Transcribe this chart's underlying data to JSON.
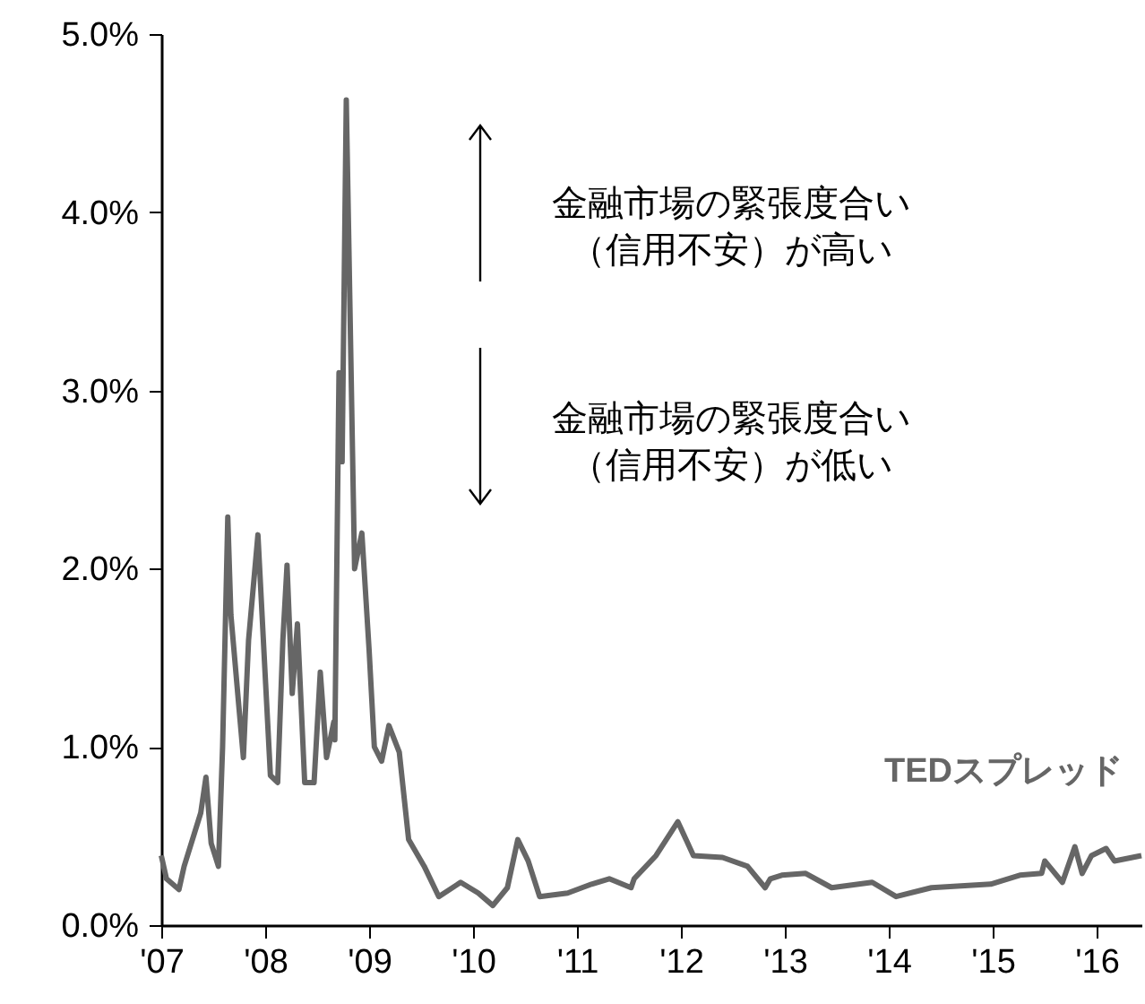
{
  "chart_data": {
    "type": "line",
    "x": [
      2007.0,
      2007.05,
      2007.17,
      2007.22,
      2007.38,
      2007.43,
      2007.48,
      2007.55,
      2007.59,
      2007.64,
      2007.67,
      2007.74,
      2007.79,
      2007.84,
      2007.93,
      2008.0,
      2008.05,
      2008.12,
      2008.17,
      2008.21,
      2008.26,
      2008.31,
      2008.38,
      2008.47,
      2008.53,
      2008.59,
      2008.66,
      2008.67,
      2008.71,
      2008.74,
      2008.78,
      2008.86,
      2008.93,
      2009.0,
      2009.05,
      2009.12,
      2009.19,
      2009.29,
      2009.38,
      2009.53,
      2009.67,
      2009.88,
      2010.05,
      2010.19,
      2010.33,
      2010.43,
      2010.53,
      2010.64,
      2010.91,
      2011.14,
      2011.31,
      2011.52,
      2011.55,
      2011.76,
      2011.97,
      2012.12,
      2012.4,
      2012.64,
      2012.81,
      2012.86,
      2012.97,
      2013.2,
      2013.45,
      2013.84,
      2014.07,
      2014.41,
      2014.98,
      2015.26,
      2015.47,
      2015.5,
      2015.67,
      2015.79,
      2015.86,
      2015.95,
      2016.09,
      2016.17,
      2016.43
    ],
    "series": [
      {
        "name": "TEDスプレッド",
        "color": "#666666",
        "values": [
          0.39,
          0.26,
          0.2,
          0.33,
          0.63,
          0.83,
          0.46,
          0.33,
          1.0,
          2.29,
          1.74,
          1.27,
          0.94,
          1.6,
          2.19,
          1.4,
          0.84,
          0.8,
          1.6,
          2.02,
          1.3,
          1.69,
          0.8,
          0.8,
          1.42,
          0.94,
          1.14,
          1.04,
          3.1,
          2.6,
          4.63,
          2.0,
          2.2,
          1.54,
          1.0,
          0.92,
          1.12,
          0.97,
          0.48,
          0.33,
          0.16,
          0.24,
          0.18,
          0.11,
          0.21,
          0.48,
          0.36,
          0.16,
          0.18,
          0.23,
          0.26,
          0.21,
          0.26,
          0.39,
          0.58,
          0.39,
          0.38,
          0.33,
          0.21,
          0.26,
          0.28,
          0.29,
          0.21,
          0.24,
          0.16,
          0.21,
          0.23,
          0.28,
          0.29,
          0.36,
          0.24,
          0.44,
          0.29,
          0.39,
          0.43,
          0.36,
          0.39
        ]
      }
    ],
    "xlim": [
      2007,
      2016.43
    ],
    "xticks": [
      {
        "value": 2007,
        "label": "'07"
      },
      {
        "value": 2008,
        "label": "'08"
      },
      {
        "value": 2009,
        "label": "'09"
      },
      {
        "value": 2010,
        "label": "'10"
      },
      {
        "value": 2011,
        "label": "'11"
      },
      {
        "value": 2012,
        "label": "'12"
      },
      {
        "value": 2013,
        "label": "'13"
      },
      {
        "value": 2014,
        "label": "'14"
      },
      {
        "value": 2015,
        "label": "'15"
      },
      {
        "value": 2016,
        "label": "'16"
      }
    ],
    "ylim": [
      0,
      5
    ],
    "yticks": [
      {
        "value": 0,
        "label": "0.0%"
      },
      {
        "value": 1,
        "label": "1.0%"
      },
      {
        "value": 2,
        "label": "2.0%"
      },
      {
        "value": 3,
        "label": "3.0%"
      },
      {
        "value": 4,
        "label": "4.0%"
      },
      {
        "value": 5,
        "label": "5.0%"
      }
    ],
    "annotations": [
      "金融市場の緊張度合い",
      "（信用不安）が高い",
      "金融市場の緊張度合い",
      "（信用不安）が低い"
    ],
    "grid": false,
    "marker": "none",
    "line_style": "solid"
  }
}
